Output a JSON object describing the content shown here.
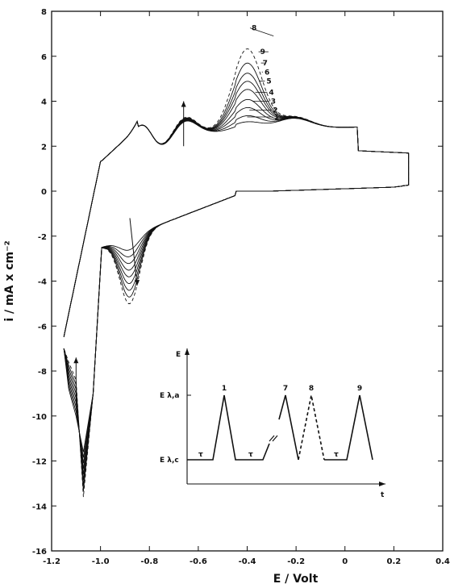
{
  "chart_data": {
    "type": "line",
    "xlabel": "E / Volt",
    "ylabel": "i / mA x cm⁻²",
    "xlim": [
      -1.2,
      0.4
    ],
    "ylim": [
      -16,
      8
    ],
    "xticks": [
      -1.2,
      -1.0,
      -0.8,
      -0.6,
      -0.4,
      -0.2,
      0,
      0.2,
      0.4
    ],
    "xtick_labels": [
      "-1.2",
      "-1.0",
      "-0.8",
      "-0.6",
      "-0.4",
      "-0.2",
      "0",
      "0.2",
      "0.4"
    ],
    "yticks": [
      -16,
      -14,
      -12,
      -10,
      -8,
      -6,
      -4,
      -2,
      0,
      2,
      4,
      6,
      8
    ],
    "ytick_labels": [
      "-16",
      "-14",
      "-12",
      "-10",
      "-8",
      "-6",
      "-4",
      "-2",
      "0",
      "2",
      "4",
      "6",
      "8"
    ],
    "grid": false,
    "series": [
      {
        "name": "1",
        "anodic_peak_current": 3.3,
        "cathodic_peak_current": -3.0,
        "style": "solid"
      },
      {
        "name": "2",
        "anodic_peak_current": 3.6,
        "cathodic_peak_current": -3.3,
        "style": "solid"
      },
      {
        "name": "3",
        "anodic_peak_current": 4.0,
        "cathodic_peak_current": -3.6,
        "style": "solid"
      },
      {
        "name": "4",
        "anodic_peak_current": 4.4,
        "cathodic_peak_current": -3.9,
        "style": "solid"
      },
      {
        "name": "5",
        "anodic_peak_current": 4.9,
        "cathodic_peak_current": -4.2,
        "style": "solid"
      },
      {
        "name": "6",
        "anodic_peak_current": 5.3,
        "cathodic_peak_current": -4.5,
        "style": "solid"
      },
      {
        "name": "7",
        "anodic_peak_current": 5.7,
        "cathodic_peak_current": -4.8,
        "style": "solid"
      },
      {
        "name": "9",
        "anodic_peak_current": 6.2,
        "cathodic_peak_current": -5.1,
        "style": "solid"
      },
      {
        "name": "8",
        "anodic_peak_current": 6.9,
        "cathodic_peak_current": -5.4,
        "style": "dashed"
      }
    ],
    "inset": {
      "y_axis_label": "E",
      "x_axis_label": "t",
      "upper_level_label": "E λ,a",
      "lower_level_label": "E λ,c",
      "hold_label": "τ",
      "peak_labels": [
        "1",
        "7",
        "8",
        "9"
      ]
    }
  }
}
